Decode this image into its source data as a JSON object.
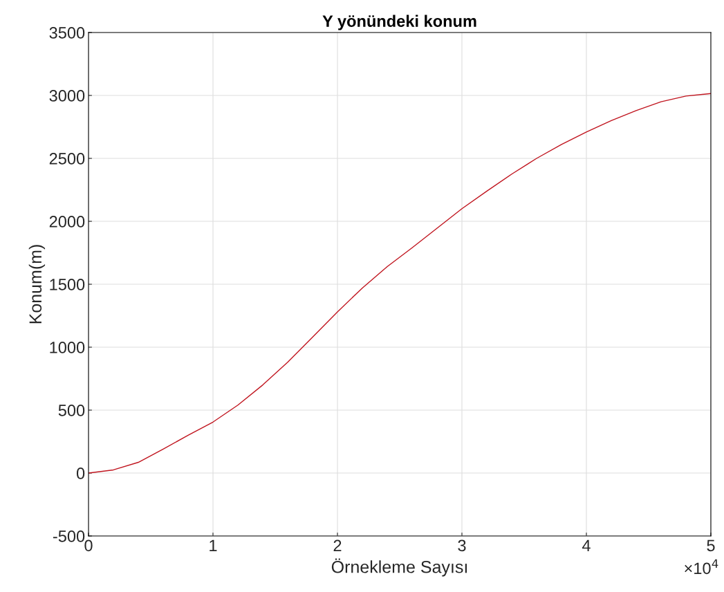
{
  "chart_data": {
    "type": "line",
    "title": "Y yönündeki konum",
    "xlabel": "Örnekleme Sayısı",
    "ylabel": "Konum(m)",
    "x": [
      0,
      0.2,
      0.4,
      0.6,
      0.8,
      1,
      1.2,
      1.4,
      1.6,
      1.8,
      2,
      2.2,
      2.4,
      2.6,
      2.8,
      3,
      3.2,
      3.4,
      3.6,
      3.8,
      4,
      4.2,
      4.4,
      4.6,
      4.8,
      5
    ],
    "series": [
      {
        "color": "#c0141e",
        "values": [
          0,
          25,
          85,
          190,
          300,
          405,
          540,
          700,
          880,
          1080,
          1280,
          1470,
          1640,
          1790,
          1945,
          2100,
          2240,
          2375,
          2500,
          2610,
          2710,
          2800,
          2880,
          2950,
          2995,
          3015
        ]
      }
    ],
    "xlim": [
      0,
      5
    ],
    "xticks": [
      0,
      1,
      2,
      3,
      4,
      5
    ],
    "ylim": [
      -500,
      3500
    ],
    "yticks": [
      -500,
      0,
      500,
      1000,
      1500,
      2000,
      2500,
      3000,
      3500
    ],
    "grid": true,
    "annotations": [
      "×10$^{4}$"
    ]
  }
}
